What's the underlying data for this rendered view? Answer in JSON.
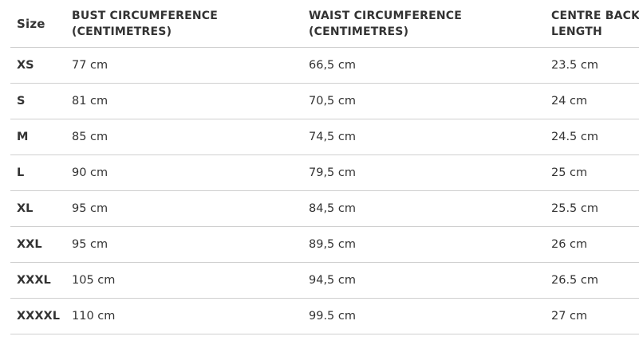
{
  "headers": [
    "Size",
    "BUST CIRCUMFERENCE\n(CENTIMETRES)",
    "WAIST CIRCUMFERENCE\n(CENTIMETRES)",
    "CENTRE BACK\nLENGTH"
  ],
  "rows": [
    [
      "XS",
      "77 cm",
      "66,5 cm",
      "23.5 cm"
    ],
    [
      "S",
      "81 cm",
      "70,5 cm",
      "24 cm"
    ],
    [
      "M",
      "85 cm",
      "74,5 cm",
      "24.5 cm"
    ],
    [
      "L",
      "90 cm",
      "79,5 cm",
      "25 cm"
    ],
    [
      "XL",
      "95 cm",
      "84,5 cm",
      "25.5 cm"
    ],
    [
      "XXL",
      "95 cm",
      "89,5 cm",
      "26 cm"
    ],
    [
      "XXXL",
      "105 cm",
      "94,5 cm",
      "26.5 cm"
    ],
    [
      "XXXXL",
      "110 cm",
      "99.5 cm",
      "27 cm"
    ]
  ]
}
